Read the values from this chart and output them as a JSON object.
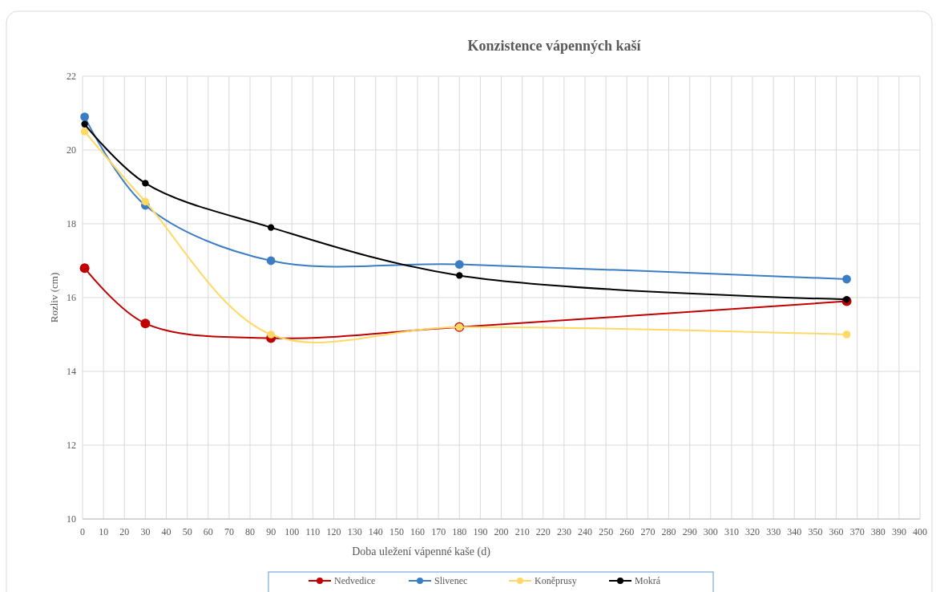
{
  "chart_data": {
    "type": "line",
    "title": "Konzistence vápenných kaší",
    "xlabel": "Doba uležení vápenné kaše (d)",
    "ylabel": "Rozliv (cm)",
    "x": [
      1,
      30,
      90,
      180,
      365
    ],
    "series": [
      {
        "name": "Nedvedice",
        "color": "#c00000",
        "values": [
          16.8,
          15.3,
          14.9,
          15.2,
          15.9
        ]
      },
      {
        "name": "Slivenec",
        "color": "#3b7dc4",
        "values": [
          20.9,
          18.5,
          17.0,
          16.9,
          16.5
        ]
      },
      {
        "name": "Koněprusy",
        "color": "#ffd966",
        "values": [
          20.5,
          18.6,
          15.0,
          15.2,
          15.0
        ]
      },
      {
        "name": "Mokrá",
        "color": "#000000",
        "values": [
          20.7,
          19.1,
          17.9,
          16.6,
          15.95
        ]
      }
    ],
    "xlim": [
      0,
      400
    ],
    "xticks": [
      0,
      10,
      20,
      30,
      40,
      50,
      60,
      70,
      80,
      90,
      100,
      110,
      120,
      130,
      140,
      150,
      160,
      170,
      180,
      190,
      200,
      210,
      220,
      230,
      240,
      250,
      260,
      270,
      280,
      290,
      300,
      310,
      320,
      330,
      340,
      350,
      360,
      370,
      380,
      390,
      400
    ],
    "ylim": [
      10,
      22
    ],
    "yticks": [
      10,
      12,
      14,
      16,
      18,
      20,
      22
    ],
    "grid": true,
    "legend": "bottom",
    "marker": "circle",
    "line_style": "solid"
  }
}
